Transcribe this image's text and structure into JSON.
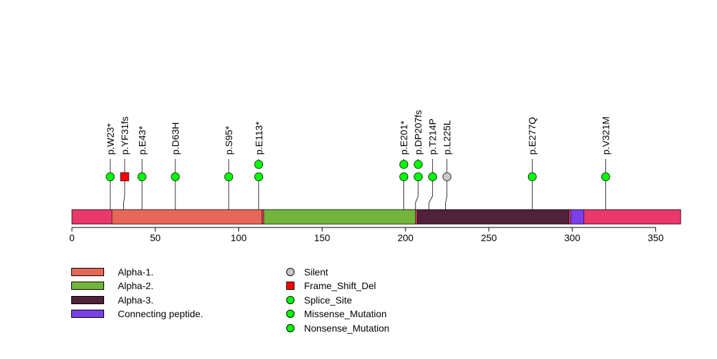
{
  "chart_data": {
    "type": "lollipop",
    "protein_length": 365,
    "x_ticks": [
      0,
      50,
      100,
      150,
      200,
      250,
      300,
      350
    ],
    "background_color": "#e8396a",
    "domains": [
      {
        "name": "Alpha-1.",
        "start": 24,
        "end": 114,
        "color": "#e66758"
      },
      {
        "name": "Alpha-2.",
        "start": 115,
        "end": 206,
        "color": "#72b53a"
      },
      {
        "name": "Alpha-3.",
        "start": 207,
        "end": 298,
        "color": "#4f213a"
      },
      {
        "name": "Connecting peptide.",
        "start": 299,
        "end": 307,
        "color": "#7b3fe8"
      }
    ],
    "mutations": [
      {
        "label": "p.W23*",
        "position": 23,
        "stacked": 1,
        "type": "Nonsense_Mutation",
        "color": "#00ff00",
        "shape": "circle"
      },
      {
        "label": "p.YF31fs",
        "position": 31,
        "stacked": 1,
        "type": "Frame_Shift_Del",
        "color": "#ff0000",
        "shape": "square"
      },
      {
        "label": "p.E43*",
        "position": 42,
        "stacked": 1,
        "type": "Nonsense_Mutation",
        "color": "#00ff00",
        "shape": "circle"
      },
      {
        "label": "p.D63H",
        "position": 62,
        "stacked": 1,
        "type": "Missense_Mutation",
        "color": "#00ff00",
        "shape": "circle"
      },
      {
        "label": "p.S95*",
        "position": 94,
        "stacked": 1,
        "type": "Nonsense_Mutation",
        "color": "#00ff00",
        "shape": "circle"
      },
      {
        "label": "p.E113*",
        "position": 112,
        "stacked": 2,
        "type": "Nonsense_Mutation",
        "color": "#00ff00",
        "shape": "circle"
      },
      {
        "label": "p.E201*",
        "position": 199,
        "stacked": 2,
        "type": "Nonsense_Mutation",
        "color": "#00ff00",
        "shape": "circle"
      },
      {
        "label": "p.DP207fs",
        "position": 206,
        "stacked": 2,
        "type": "Missense_Mutation",
        "color": "#00ff00",
        "shape": "circle"
      },
      {
        "label": "p.T214P",
        "position": 214,
        "stacked": 1,
        "type": "Missense_Mutation",
        "color": "#00ff00",
        "shape": "circle"
      },
      {
        "label": "p.L225L",
        "position": 224,
        "stacked": 1,
        "type": "Silent",
        "color": "#c8c8c8",
        "shape": "circle"
      },
      {
        "label": "p.E277Q",
        "position": 276,
        "stacked": 1,
        "type": "Missense_Mutation",
        "color": "#00ff00",
        "shape": "circle"
      },
      {
        "label": "p.V321M",
        "position": 320,
        "stacked": 1,
        "type": "Missense_Mutation",
        "color": "#00ff00",
        "shape": "circle"
      }
    ],
    "domain_legend": [
      {
        "name": "Alpha-1.",
        "color": "#e66758"
      },
      {
        "name": "Alpha-2.",
        "color": "#72b53a"
      },
      {
        "name": "Alpha-3.",
        "color": "#4f213a"
      },
      {
        "name": "Connecting peptide.",
        "color": "#7b3fe8"
      }
    ],
    "mutation_legend": [
      {
        "name": "Silent",
        "color": "#c8c8c8",
        "shape": "circle"
      },
      {
        "name": "Frame_Shift_Del",
        "color": "#ff0000",
        "shape": "square"
      },
      {
        "name": "Splice_Site",
        "color": "#00ff00",
        "shape": "circle"
      },
      {
        "name": "Missense_Mutation",
        "color": "#00ff00",
        "shape": "circle"
      },
      {
        "name": "Nonsense_Mutation",
        "color": "#00ff00",
        "shape": "circle"
      }
    ]
  }
}
